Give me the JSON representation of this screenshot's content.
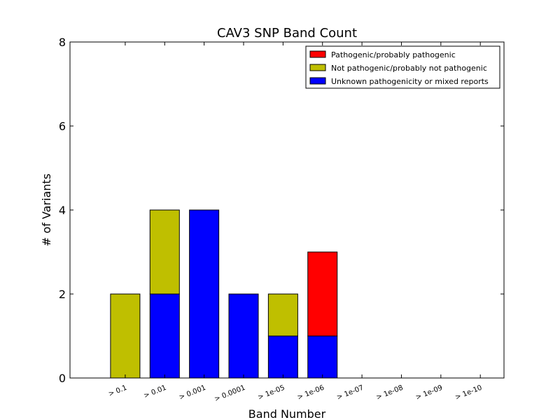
{
  "chart_data": {
    "type": "bar",
    "stacked": true,
    "title": "CAV3 SNP Band Count",
    "xlabel": "Band Number",
    "ylabel": "# of Variants",
    "ylim": [
      0,
      8
    ],
    "yticks": [
      "0",
      "2",
      "4",
      "6",
      "8"
    ],
    "grid": false,
    "legend_position": "top-right",
    "categories": [
      "> 0.1",
      "> 0.01",
      "> 0.001",
      "> 0.0001",
      "> 1e-05",
      "> 1e-06",
      "> 1e-07",
      "> 1e-08",
      "> 1e-09",
      "> 1e-10"
    ],
    "series": [
      {
        "name": "Unknown pathogenicity or mixed reports",
        "color": "#0000ff",
        "values": [
          0,
          2,
          4,
          2,
          1,
          1,
          0,
          0,
          0,
          0
        ]
      },
      {
        "name": "Not pathogenic/probably not pathogenic",
        "color": "#bfbf00",
        "values": [
          2,
          2,
          0,
          0,
          1,
          0,
          0,
          0,
          0,
          0
        ]
      },
      {
        "name": "Pathogenic/probably pathogenic",
        "color": "#ff0000",
        "values": [
          0,
          0,
          0,
          0,
          0,
          2,
          0,
          0,
          0,
          0
        ]
      }
    ],
    "legend_order": [
      "Pathogenic/probably pathogenic",
      "Not pathogenic/probably not pathogenic",
      "Unknown pathogenicity or mixed reports"
    ]
  }
}
